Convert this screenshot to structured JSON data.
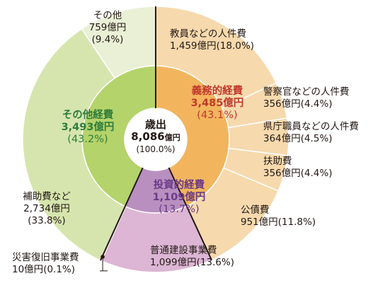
{
  "chart_data": {
    "type": "pie",
    "center": {
      "title": "歳出",
      "amount": "8,086",
      "unit": "億円",
      "percent": "(100.0%)"
    },
    "slices": [
      {
        "name": "教員などの人件費",
        "value": 1459,
        "value_label": "1,459億円",
        "pct_label": "(18.0%)",
        "group": "義務的経費",
        "color": "#f6d9ad"
      },
      {
        "name": "警察官などの人件費",
        "value": 356,
        "value_label": "356億円",
        "pct_label": "(4.4%)",
        "group": "義務的経費",
        "color": "#f6d9ad"
      },
      {
        "name": "県庁職員などの人件費",
        "value": 364,
        "value_label": "364億円",
        "pct_label": "(4.5%)",
        "group": "義務的経費",
        "color": "#f6d9ad"
      },
      {
        "name": "扶助費",
        "value": 356,
        "value_label": "356億円",
        "pct_label": "(4.4%)",
        "group": "義務的経費",
        "color": "#f6d9ad"
      },
      {
        "name": "公債費",
        "value": 951,
        "value_label": "951億円",
        "pct_label": "(11.8%)",
        "group": "義務的経費",
        "color": "#f6d9ad"
      },
      {
        "name": "普通建設事業費",
        "value": 1099,
        "value_label": "1,099億円",
        "pct_label": "(13.6%)",
        "group": "投資的経費",
        "color": "#dcb6d4"
      },
      {
        "name": "災害復旧事業費",
        "value": 10,
        "value_label": "10億円",
        "pct_label": "(0.1%)",
        "group": "投資的経費",
        "color": "#1a1a1a"
      },
      {
        "name": "補助費など",
        "value": 2734,
        "value_label": "2,734億円",
        "pct_label": "(33.8%)",
        "group": "その他経費",
        "color": "#d6e5ae"
      },
      {
        "name": "その他",
        "value": 759,
        "value_label": "759億円",
        "pct_label": "(9.4%)",
        "group": "その他経費",
        "color": "#eaf0d6"
      }
    ],
    "groups": [
      {
        "name": "義務的経費",
        "value": 3485,
        "value_label": "3,485億円",
        "pct_label": "(43.1%)",
        "color": "#f2b55e",
        "text_color": "#c0392b"
      },
      {
        "name": "投資的経費",
        "value": 1109,
        "value_label": "1,109億円",
        "pct_label": "(13.7%)",
        "color": "#b98fc0",
        "text_color": "#6b3a87"
      },
      {
        "name": "その他経費",
        "value": 3493,
        "value_label": "3,493億円",
        "pct_label": "(43.2%)",
        "color": "#b4d36a",
        "text_color": "#2e7d3c"
      }
    ]
  }
}
